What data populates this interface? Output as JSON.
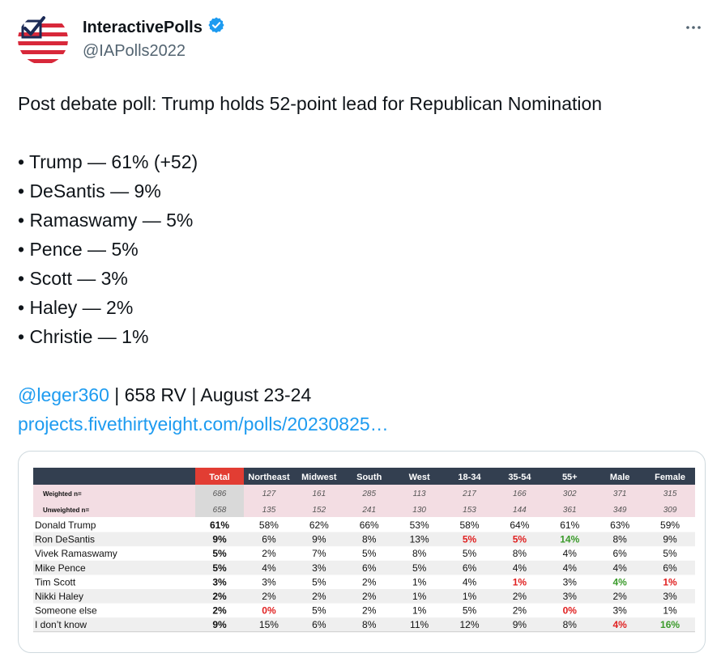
{
  "tweet": {
    "author_name": "InteractivePolls",
    "author_handle": "@IAPolls2022",
    "headline": "Post debate poll: Trump holds 52-point lead for Republican Nomination",
    "bullets": [
      "• Trump — 61% (+52)",
      "• DeSantis — 9%",
      "• Ramaswamy — 5%",
      "• Pence — 5%",
      "• Scott — 3%",
      "• Haley — 2%",
      "• Christie — 1%"
    ],
    "mention": "@leger360",
    "source_rest": " | 658 RV | August 23-24",
    "url": "projects.fivethirtyeight.com/polls/20230825…"
  },
  "icons": {
    "verified": "verified-badge-icon",
    "more": "more-options-icon",
    "avatar": "flag-check-logo"
  },
  "colors": {
    "header_dark": "#333f50",
    "total_red": "#e23d33",
    "pink_rows": "#f3dde3",
    "gray_total": "#d9d9d9",
    "stripe": "#efefef",
    "red_text": "#e02020",
    "green_text": "#3a9a2a",
    "link": "#1d9bf0"
  },
  "chart_data": {
    "type": "table",
    "columns": [
      "Total",
      "Northeast",
      "Midwest",
      "South",
      "West",
      "18-34",
      "35-54",
      "55+",
      "Male",
      "Female"
    ],
    "n_rows": [
      {
        "label": "Weighted n=",
        "values": [
          "686",
          "127",
          "161",
          "285",
          "113",
          "217",
          "166",
          "302",
          "371",
          "315"
        ]
      },
      {
        "label": "Unweighted n=",
        "values": [
          "658",
          "135",
          "152",
          "241",
          "130",
          "153",
          "144",
          "361",
          "349",
          "309"
        ]
      }
    ],
    "rows": [
      {
        "label": "Donald Trump",
        "values": [
          "61%",
          "58%",
          "62%",
          "66%",
          "53%",
          "58%",
          "64%",
          "61%",
          "63%",
          "59%"
        ],
        "flags": [
          "",
          "",
          "",
          "",
          "",
          "",
          "",
          "",
          "",
          ""
        ]
      },
      {
        "label": "Ron DeSantis",
        "values": [
          "9%",
          "6%",
          "9%",
          "8%",
          "13%",
          "5%",
          "5%",
          "14%",
          "8%",
          "9%"
        ],
        "flags": [
          "",
          "",
          "",
          "",
          "",
          "red",
          "red",
          "green",
          "",
          ""
        ]
      },
      {
        "label": "Vivek Ramaswamy",
        "values": [
          "5%",
          "2%",
          "7%",
          "5%",
          "8%",
          "5%",
          "8%",
          "4%",
          "6%",
          "5%"
        ],
        "flags": [
          "",
          "",
          "",
          "",
          "",
          "",
          "",
          "",
          "",
          ""
        ]
      },
      {
        "label": "Mike Pence",
        "values": [
          "5%",
          "4%",
          "3%",
          "6%",
          "5%",
          "6%",
          "4%",
          "4%",
          "4%",
          "6%"
        ],
        "flags": [
          "",
          "",
          "",
          "",
          "",
          "",
          "",
          "",
          "",
          ""
        ]
      },
      {
        "label": "Tim Scott",
        "values": [
          "3%",
          "3%",
          "5%",
          "2%",
          "1%",
          "4%",
          "1%",
          "3%",
          "4%",
          "1%"
        ],
        "flags": [
          "",
          "",
          "",
          "",
          "",
          "",
          "red",
          "",
          "green",
          "red"
        ]
      },
      {
        "label": "Nikki Haley",
        "values": [
          "2%",
          "2%",
          "2%",
          "2%",
          "1%",
          "1%",
          "2%",
          "3%",
          "2%",
          "3%"
        ],
        "flags": [
          "",
          "",
          "",
          "",
          "",
          "",
          "",
          "",
          "",
          ""
        ]
      },
      {
        "label": "Someone else",
        "values": [
          "2%",
          "0%",
          "5%",
          "2%",
          "1%",
          "5%",
          "2%",
          "0%",
          "3%",
          "1%"
        ],
        "flags": [
          "",
          "red",
          "",
          "",
          "",
          "",
          "",
          "red",
          "",
          ""
        ]
      },
      {
        "label": "I don’t know",
        "values": [
          "9%",
          "15%",
          "6%",
          "8%",
          "11%",
          "12%",
          "9%",
          "8%",
          "4%",
          "16%"
        ],
        "flags": [
          "",
          "",
          "",
          "",
          "",
          "",
          "",
          "",
          "red",
          "green"
        ]
      }
    ]
  }
}
